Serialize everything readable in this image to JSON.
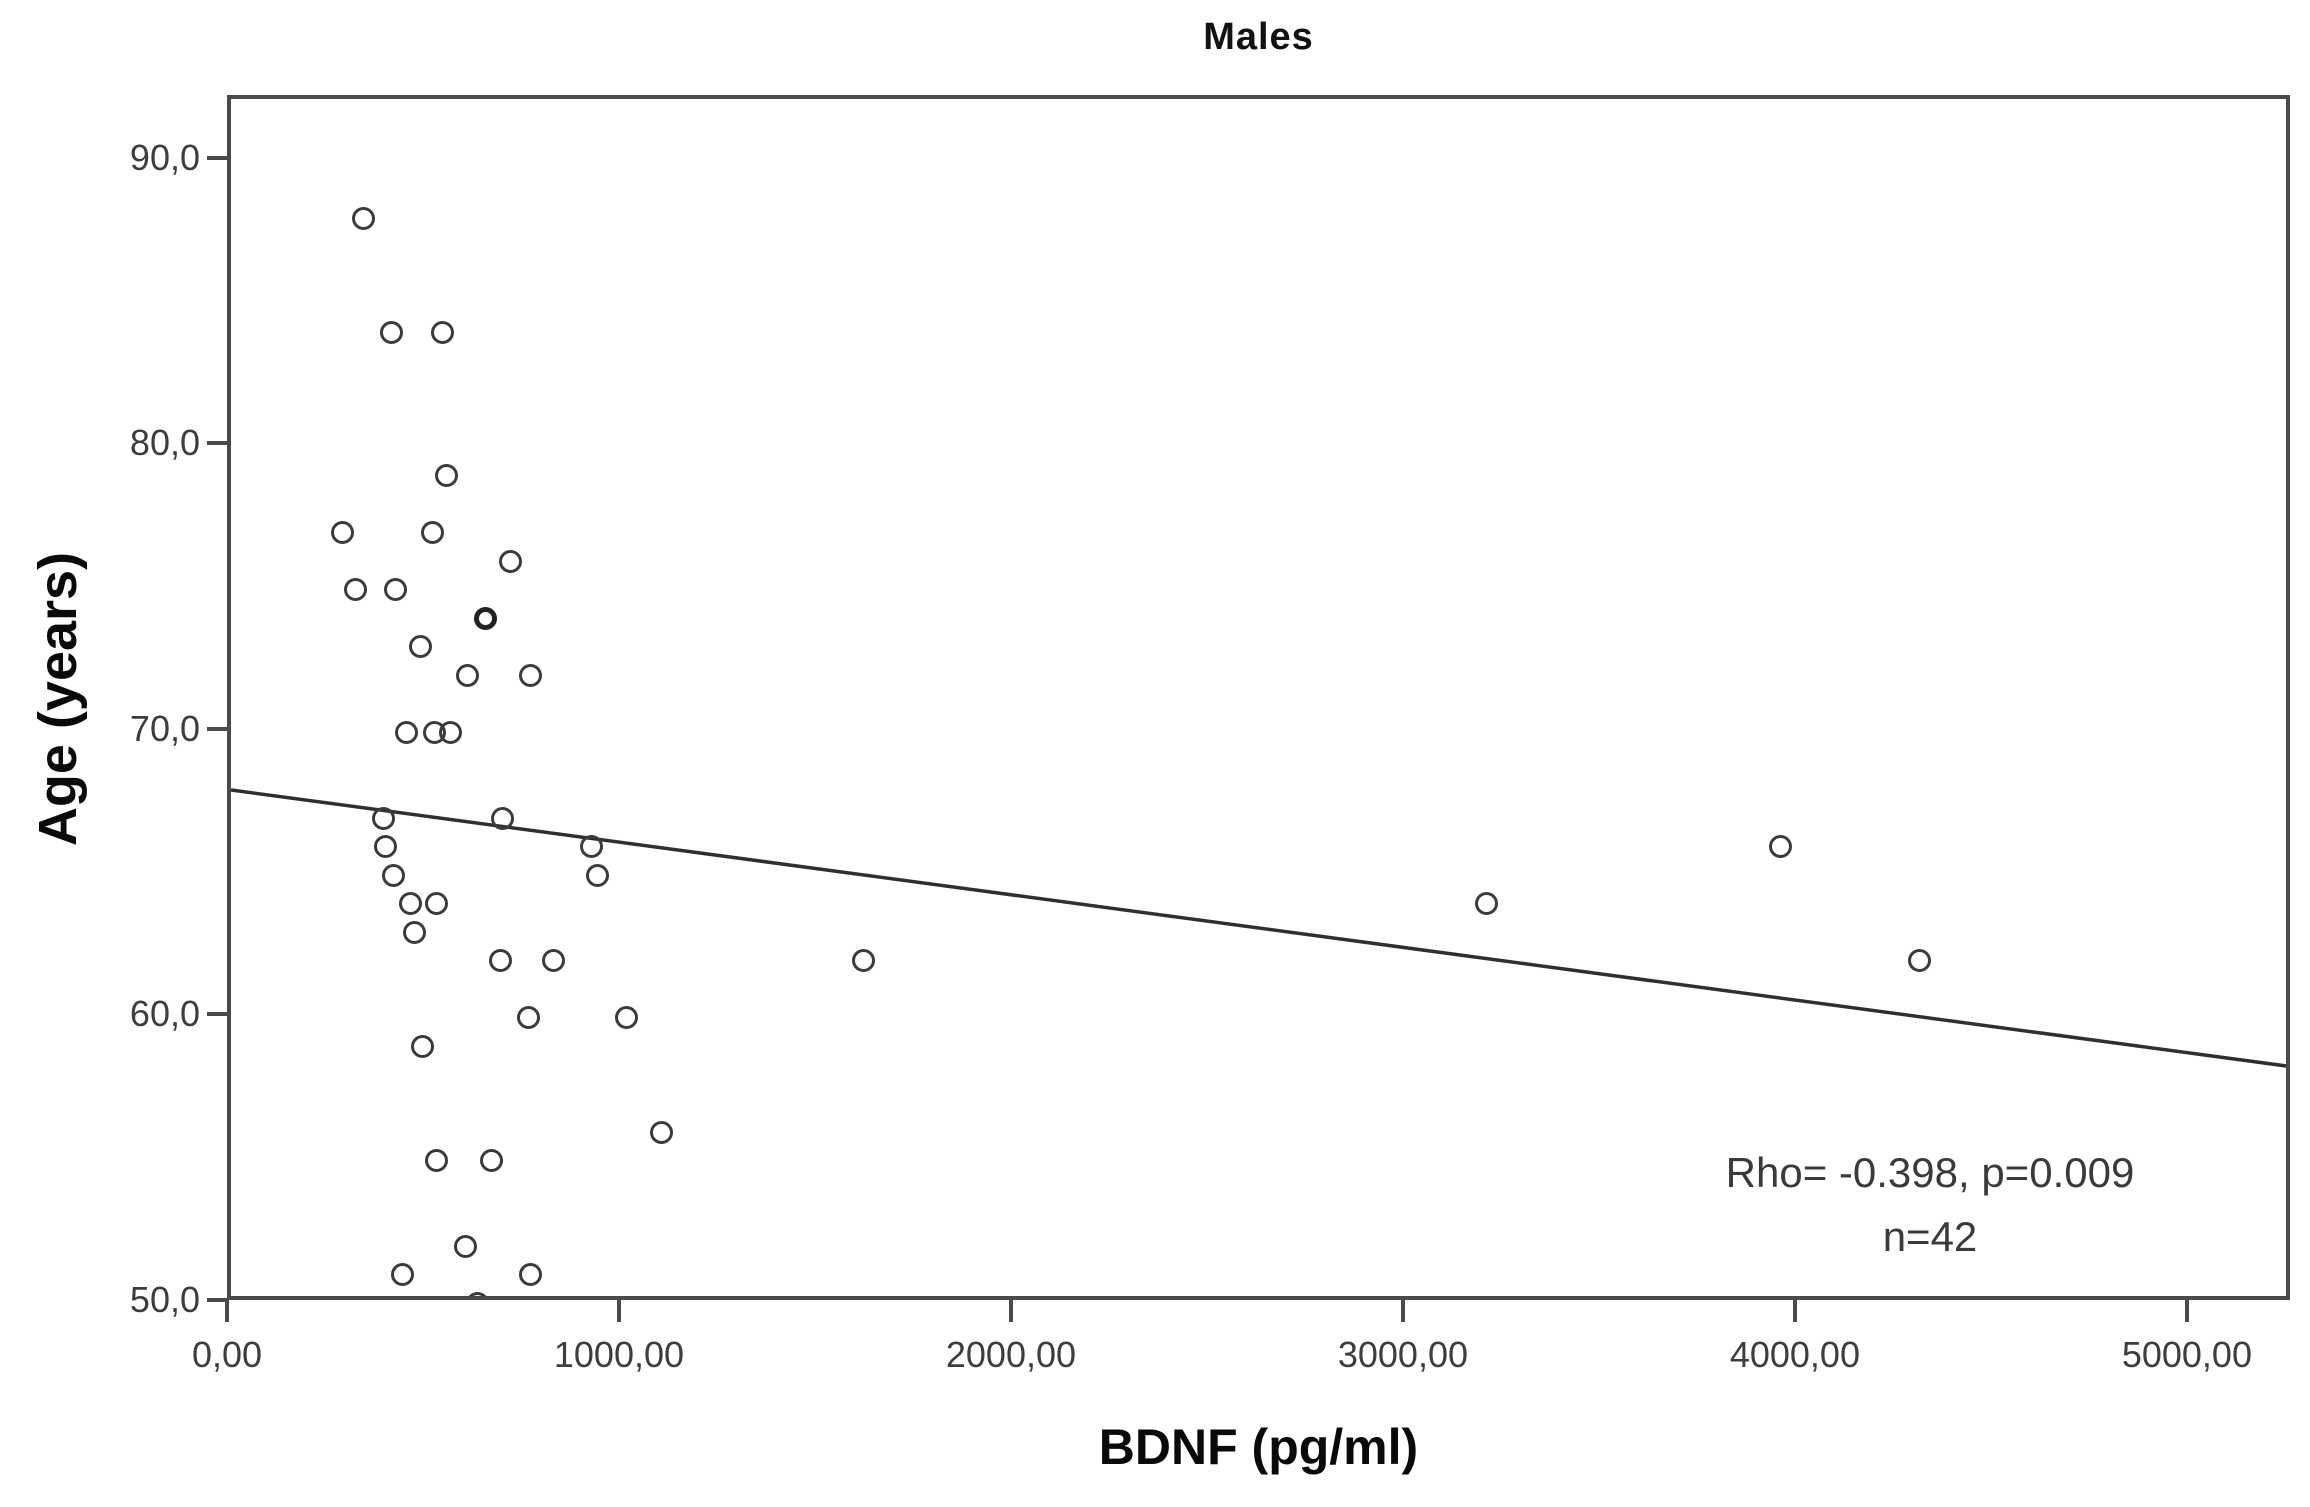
{
  "chart_data": {
    "type": "scatter",
    "title": "Males",
    "xlabel": "BDNF (pg/ml)",
    "ylabel": "Age (years)",
    "xlim": [
      0,
      5263
    ],
    "ylim": [
      50,
      92.2
    ],
    "grid": false,
    "legend": "none",
    "marker_style": "open-circle",
    "x_ticks": [
      {
        "value": 0,
        "label": "0,00"
      },
      {
        "value": 1000,
        "label": "1000,00"
      },
      {
        "value": 2000,
        "label": "2000,00"
      },
      {
        "value": 3000,
        "label": "3000,00"
      },
      {
        "value": 4000,
        "label": "4000,00"
      },
      {
        "value": 5000,
        "label": "5000,00"
      }
    ],
    "y_ticks": [
      {
        "value": 50,
        "label": "50,0"
      },
      {
        "value": 60,
        "label": "60,0"
      },
      {
        "value": 70,
        "label": "70,0"
      },
      {
        "value": 80,
        "label": "80,0"
      },
      {
        "value": 90,
        "label": "90,0"
      }
    ],
    "points": [
      {
        "x": 340,
        "y": 88
      },
      {
        "x": 410,
        "y": 84
      },
      {
        "x": 540,
        "y": 84
      },
      {
        "x": 550,
        "y": 79
      },
      {
        "x": 285,
        "y": 77
      },
      {
        "x": 515,
        "y": 77
      },
      {
        "x": 715,
        "y": 76
      },
      {
        "x": 320,
        "y": 75
      },
      {
        "x": 420,
        "y": 75
      },
      {
        "x": 650,
        "y": 74,
        "count": 2
      },
      {
        "x": 485,
        "y": 73
      },
      {
        "x": 605,
        "y": 72
      },
      {
        "x": 765,
        "y": 72
      },
      {
        "x": 450,
        "y": 70
      },
      {
        "x": 520,
        "y": 70
      },
      {
        "x": 560,
        "y": 70
      },
      {
        "x": 390,
        "y": 67
      },
      {
        "x": 695,
        "y": 67
      },
      {
        "x": 395,
        "y": 66
      },
      {
        "x": 920,
        "y": 66
      },
      {
        "x": 3955,
        "y": 66
      },
      {
        "x": 415,
        "y": 65
      },
      {
        "x": 935,
        "y": 65
      },
      {
        "x": 460,
        "y": 64
      },
      {
        "x": 525,
        "y": 64
      },
      {
        "x": 3205,
        "y": 64
      },
      {
        "x": 470,
        "y": 63
      },
      {
        "x": 690,
        "y": 62
      },
      {
        "x": 825,
        "y": 62
      },
      {
        "x": 1615,
        "y": 62
      },
      {
        "x": 4310,
        "y": 62
      },
      {
        "x": 760,
        "y": 60
      },
      {
        "x": 1010,
        "y": 60
      },
      {
        "x": 490,
        "y": 59
      },
      {
        "x": 1100,
        "y": 56
      },
      {
        "x": 525,
        "y": 55
      },
      {
        "x": 665,
        "y": 55
      },
      {
        "x": 600,
        "y": 52
      },
      {
        "x": 440,
        "y": 51
      },
      {
        "x": 765,
        "y": 51
      },
      {
        "x": 630,
        "y": 50
      }
    ],
    "regression_line": {
      "x1": 0,
      "y1": 68.0,
      "x2": 5263,
      "y2": 58.3
    },
    "annotation": {
      "line1": "Rho= -0.398, p=0.009",
      "line2": "n=42"
    },
    "stats": {
      "rho": -0.398,
      "p": 0.009,
      "n": 42
    },
    "colors": {
      "marker": "#3b3b3b",
      "regression_line": "#2f2f2f",
      "axis": "#4a4a4a",
      "tick_text": "#3d3d3d",
      "title_text": "#0a0a0a"
    }
  }
}
